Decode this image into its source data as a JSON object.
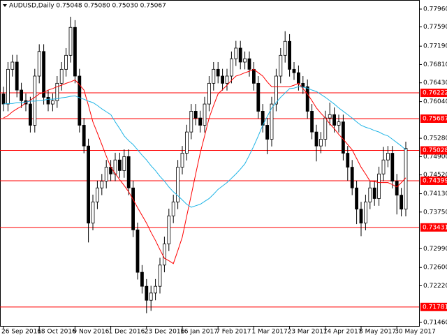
{
  "chart_data": {
    "type": "candlestick",
    "title": "AUDUSD,Daily  0.75048 0.75080 0.75030 0.75067",
    "categories": [
      "26 Sep 2016",
      null,
      null,
      null,
      null,
      null,
      null,
      null,
      "18 Oct 2016",
      null,
      null,
      null,
      null,
      null,
      null,
      null,
      "9 Nov 2016",
      null,
      null,
      null,
      null,
      null,
      null,
      null,
      "1 Dec 2016",
      null,
      null,
      null,
      null,
      null,
      null,
      null,
      "23 Dec 2016",
      null,
      null,
      null,
      null,
      null,
      null,
      null,
      "16 Jan 2017",
      null,
      null,
      null,
      null,
      null,
      null,
      null,
      "7 Feb 2017",
      null,
      null,
      null,
      null,
      null,
      null,
      null,
      "1 Mar 2017",
      null,
      null,
      null,
      null,
      null,
      null,
      null,
      "23 Mar 2017",
      null,
      null,
      null,
      null,
      null,
      null,
      null,
      "14 Apr 2017",
      null,
      null,
      null,
      null,
      null,
      null,
      null,
      "8 May 2017",
      null,
      null,
      null,
      null,
      null,
      null,
      null,
      "30 May 2017",
      null,
      null
    ],
    "open": [
      0.762,
      0.7599,
      0.7671,
      0.7686,
      0.7628,
      0.7606,
      0.7599,
      0.7555,
      0.7657,
      0.7708,
      0.7613,
      0.7599,
      0.7606,
      0.7642,
      0.7671,
      0.77,
      0.7758,
      0.7657,
      0.7555,
      0.7512,
      0.7352,
      0.7396,
      0.7425,
      0.7439,
      0.7468,
      0.7454,
      0.7483,
      0.7461,
      0.749,
      0.7425,
      0.7338,
      0.725,
      0.7221,
      0.7192,
      0.7207,
      0.7221,
      0.7265,
      0.7309,
      0.7367,
      0.7396,
      0.7468,
      0.7497,
      0.7541,
      0.7584,
      0.757,
      0.7555,
      0.7599,
      0.7642,
      0.7671,
      0.7657,
      0.7642,
      0.7657,
      0.7693,
      0.7715,
      0.7686,
      0.7693,
      0.7671,
      0.7642,
      0.7584,
      0.7555,
      0.7526,
      0.7599,
      0.7657,
      0.77,
      0.7729,
      0.7671,
      0.7664,
      0.7642,
      0.7635,
      0.7584,
      0.7541,
      0.7512,
      0.7526,
      0.757,
      0.7577,
      0.7555,
      0.7562,
      0.7497,
      0.7468,
      0.7425,
      0.7381,
      0.7352,
      0.7396,
      0.7425,
      0.7403,
      0.7454,
      0.7483,
      0.7497,
      0.7439,
      0.741,
      0.7381
    ],
    "high": [
      0.7635,
      0.7686,
      0.7701,
      0.7701,
      0.7643,
      0.7621,
      0.7614,
      0.7672,
      0.7723,
      0.7723,
      0.7628,
      0.7621,
      0.7657,
      0.7686,
      0.7715,
      0.778,
      0.7773,
      0.7672,
      0.757,
      0.7527,
      0.7411,
      0.744,
      0.7454,
      0.7483,
      0.7483,
      0.7498,
      0.7498,
      0.7505,
      0.7505,
      0.744,
      0.7353,
      0.7265,
      0.7236,
      0.7222,
      0.7236,
      0.728,
      0.7324,
      0.7382,
      0.7411,
      0.7483,
      0.7512,
      0.7556,
      0.7599,
      0.7599,
      0.7585,
      0.7614,
      0.7657,
      0.7686,
      0.7686,
      0.7672,
      0.7672,
      0.7708,
      0.773,
      0.773,
      0.7708,
      0.7708,
      0.7686,
      0.7657,
      0.7599,
      0.757,
      0.7614,
      0.7672,
      0.7715,
      0.775,
      0.7744,
      0.7686,
      0.7679,
      0.7657,
      0.765,
      0.7599,
      0.7556,
      0.7541,
      0.7585,
      0.7602,
      0.7592,
      0.7577,
      0.7577,
      0.7512,
      0.7483,
      0.744,
      0.7396,
      0.7411,
      0.744,
      0.744,
      0.7469,
      0.751,
      0.7512,
      0.7512,
      0.7454,
      0.7425,
      0.7521
    ],
    "low": [
      0.7584,
      0.7584,
      0.7656,
      0.7613,
      0.7591,
      0.7584,
      0.754,
      0.754,
      0.7642,
      0.7598,
      0.7584,
      0.7584,
      0.7591,
      0.7627,
      0.7656,
      0.7685,
      0.7642,
      0.754,
      0.7497,
      0.7312,
      0.7337,
      0.7381,
      0.741,
      0.7424,
      0.7439,
      0.7439,
      0.7446,
      0.7446,
      0.741,
      0.7323,
      0.7235,
      0.7206,
      0.7165,
      0.717,
      0.7192,
      0.7206,
      0.725,
      0.7294,
      0.7352,
      0.7381,
      0.7453,
      0.7482,
      0.7526,
      0.7555,
      0.754,
      0.754,
      0.7584,
      0.7627,
      0.7642,
      0.7627,
      0.7627,
      0.7642,
      0.7678,
      0.7671,
      0.7671,
      0.7656,
      0.7627,
      0.7569,
      0.754,
      0.7495,
      0.7511,
      0.7584,
      0.7642,
      0.7685,
      0.7656,
      0.7649,
      0.7627,
      0.762,
      0.7569,
      0.7526,
      0.748,
      0.7497,
      0.7511,
      0.7555,
      0.754,
      0.754,
      0.7482,
      0.744,
      0.741,
      0.735,
      0.7325,
      0.7337,
      0.7381,
      0.7388,
      0.7388,
      0.7439,
      0.7468,
      0.7424,
      0.737,
      0.7366,
      0.7366
    ],
    "close": [
      0.7599,
      0.7671,
      0.7686,
      0.7628,
      0.7606,
      0.7599,
      0.7555,
      0.7657,
      0.7708,
      0.7613,
      0.7599,
      0.7606,
      0.7642,
      0.7671,
      0.77,
      0.7758,
      0.7657,
      0.7555,
      0.7512,
      0.7352,
      0.7396,
      0.7425,
      0.7439,
      0.7468,
      0.7454,
      0.7483,
      0.7461,
      0.749,
      0.7425,
      0.7338,
      0.725,
      0.7221,
      0.7192,
      0.7207,
      0.7221,
      0.7265,
      0.7309,
      0.7367,
      0.7396,
      0.7468,
      0.7497,
      0.7541,
      0.7584,
      0.757,
      0.7555,
      0.7599,
      0.7642,
      0.7671,
      0.7657,
      0.7642,
      0.7657,
      0.7693,
      0.7715,
      0.7686,
      0.7693,
      0.7671,
      0.7642,
      0.7584,
      0.7555,
      0.7526,
      0.7599,
      0.7657,
      0.77,
      0.7729,
      0.7671,
      0.7664,
      0.7642,
      0.7635,
      0.7584,
      0.7541,
      0.7512,
      0.7526,
      0.757,
      0.7577,
      0.7555,
      0.7562,
      0.7497,
      0.7468,
      0.7425,
      0.7381,
      0.7352,
      0.7396,
      0.7425,
      0.7403,
      0.7454,
      0.7483,
      0.7497,
      0.7439,
      0.741,
      0.7381,
      0.7507
    ],
    "overlays": [
      {
        "color": "#ff0000",
        "values": [
          0.757,
          0.7575,
          0.7583,
          0.7589,
          0.7594,
          0.7602,
          0.7607,
          0.7613,
          0.762,
          0.7623,
          0.7628,
          0.7631,
          0.7635,
          0.7638,
          0.7642,
          0.7645,
          0.7649,
          0.7639,
          0.7628,
          0.7596,
          0.7562,
          0.7539,
          0.7515,
          0.7491,
          0.7468,
          0.7455,
          0.7442,
          0.743,
          0.7417,
          0.7401,
          0.7384,
          0.7368,
          0.7352,
          0.7333,
          0.7316,
          0.7297,
          0.7279,
          0.7274,
          0.7268,
          0.7295,
          0.7323,
          0.7367,
          0.741,
          0.7454,
          0.7497,
          0.7533,
          0.757,
          0.7596,
          0.762,
          0.7629,
          0.7638,
          0.7648,
          0.7657,
          0.766,
          0.7664,
          0.7667,
          0.7671,
          0.7664,
          0.7657,
          0.7645,
          0.7635,
          0.7635,
          0.7635,
          0.7635,
          0.7635,
          0.7638,
          0.7642,
          0.7631,
          0.762,
          0.7606,
          0.7591,
          0.758,
          0.757,
          0.7558,
          0.7548,
          0.7536,
          0.7526,
          0.7515,
          0.7504,
          0.7486,
          0.7468,
          0.7454,
          0.7439,
          0.7438,
          0.7436,
          0.7436,
          0.7436,
          0.7432,
          0.7427,
          0.7436,
          0.7446
        ]
      },
      {
        "color": "#1eb4e6",
        "values": [
          0.7599,
          0.76,
          0.76,
          0.7602,
          0.7602,
          0.7603,
          0.7605,
          0.7605,
          0.7606,
          0.7607,
          0.7609,
          0.7609,
          0.761,
          0.7612,
          0.7613,
          0.7615,
          0.7616,
          0.7612,
          0.7609,
          0.7605,
          0.7602,
          0.7596,
          0.7589,
          0.7583,
          0.7577,
          0.7562,
          0.7548,
          0.7533,
          0.7523,
          0.7515,
          0.7504,
          0.7493,
          0.7483,
          0.7471,
          0.7461,
          0.7449,
          0.7439,
          0.7427,
          0.7417,
          0.7409,
          0.74,
          0.7391,
          0.7385,
          0.7388,
          0.7391,
          0.7397,
          0.7403,
          0.7412,
          0.7422,
          0.7429,
          0.7436,
          0.7445,
          0.7454,
          0.7464,
          0.7475,
          0.7493,
          0.7512,
          0.7533,
          0.7555,
          0.7573,
          0.7591,
          0.7602,
          0.7613,
          0.7622,
          0.7631,
          0.7632,
          0.7635,
          0.7634,
          0.7632,
          0.7628,
          0.7625,
          0.7619,
          0.7613,
          0.7606,
          0.7599,
          0.7591,
          0.7584,
          0.7577,
          0.757,
          0.7562,
          0.7555,
          0.7551,
          0.7548,
          0.7544,
          0.7541,
          0.7536,
          0.7533,
          0.7526,
          0.7519,
          0.7512,
          0.7504
        ]
      }
    ],
    "levels": {
      "color": "#ff0000",
      "values": [
        0.76222,
        0.75687,
        0.75028,
        0.74399,
        0.73431,
        0.71781
      ]
    },
    "candle_color": "#000000",
    "ylim": [
      0.71373,
      0.78148
    ],
    "yticks": [
      {
        "value": 0.7796,
        "label": "0.77960"
      },
      {
        "value": 0.7759,
        "label": "0.77590"
      },
      {
        "value": 0.7719,
        "label": "0.77190"
      },
      {
        "value": 0.7681,
        "label": "0.76810"
      },
      {
        "value": 0.7643,
        "label": "0.76430"
      },
      {
        "value": 0.7604,
        "label": "0.76040"
      },
      {
        "value": 0.7528,
        "label": "0.75280"
      },
      {
        "value": 0.749,
        "label": "0.74900"
      },
      {
        "value": 0.7452,
        "label": "0.74520"
      },
      {
        "value": 0.7413,
        "label": "0.74130"
      },
      {
        "value": 0.7375,
        "label": "0.73750"
      },
      {
        "value": 0.7299,
        "label": "0.72990"
      },
      {
        "value": 0.726,
        "label": "0.72600"
      },
      {
        "value": 0.7222,
        "label": "0.72220"
      },
      {
        "value": 0.7146,
        "label": "0.71460"
      }
    ],
    "grid": false
  }
}
